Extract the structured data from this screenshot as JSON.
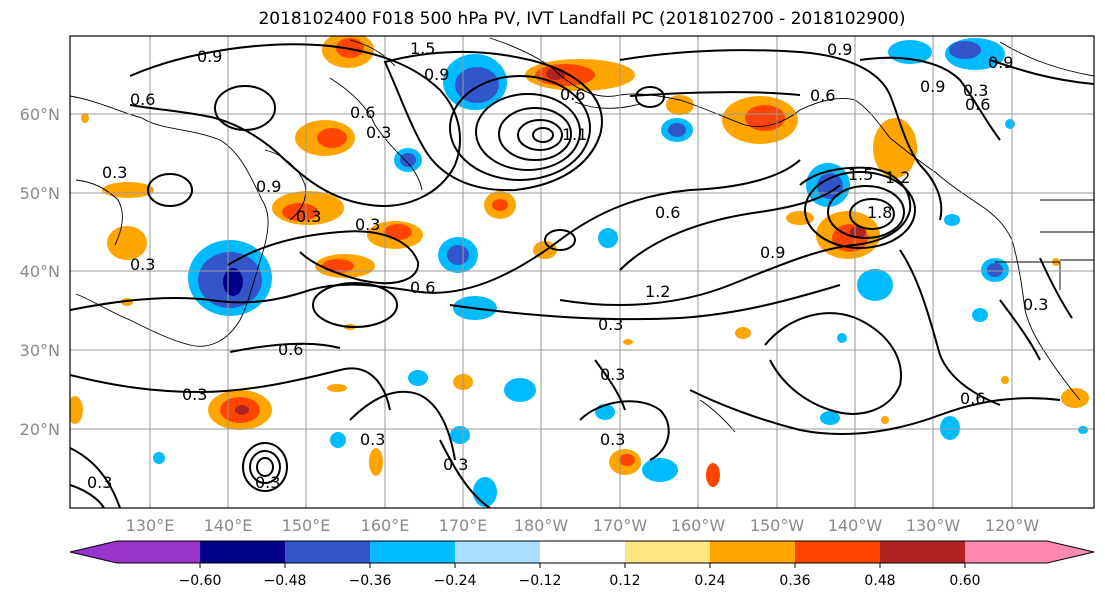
{
  "title": "2018102400 F018 500 hPa PV, IVT Landfall PC (2018102700 - 2018102900)",
  "lat_labels": [
    "60°N",
    "50°N",
    "40°N",
    "30°N",
    "20°N"
  ],
  "lon_labels": [
    "130°E",
    "140°E",
    "150°E",
    "160°E",
    "170°E",
    "180°W",
    "170°W",
    "160°W",
    "150°W",
    "140°W",
    "130°W",
    "120°W"
  ],
  "colorbar": {
    "ticks": [
      "−0.60",
      "−0.48",
      "−0.36",
      "−0.24",
      "−0.12",
      "0.12",
      "0.24",
      "0.36",
      "0.48",
      "0.60"
    ],
    "colors": [
      "#9933cc",
      "#000088",
      "#3355cc",
      "#00bbff",
      "#aaddff",
      "#ffffff",
      "#ffe680",
      "#ffa500",
      "#ff4500",
      "#b22222",
      "#ff88b0"
    ]
  },
  "contour_labels": [
    "0.9",
    "1.5",
    "0.9",
    "0.6",
    "1.1",
    "0.9",
    "0.9",
    "0.6",
    "0.9",
    "0.6",
    "0.3",
    "0.9",
    "0.3",
    "0.3",
    "0.3",
    "0.3",
    "0.6",
    "0.6",
    "0.6",
    "1.2",
    "0.3",
    "0.9",
    "1.5",
    "1.8",
    "1.2",
    "0.3",
    "0.6",
    "0.3",
    "0.3",
    "0.3",
    "0.3",
    "0.3",
    "0.3",
    "0.3",
    "0.3",
    "0.6",
    "0.6"
  ]
}
